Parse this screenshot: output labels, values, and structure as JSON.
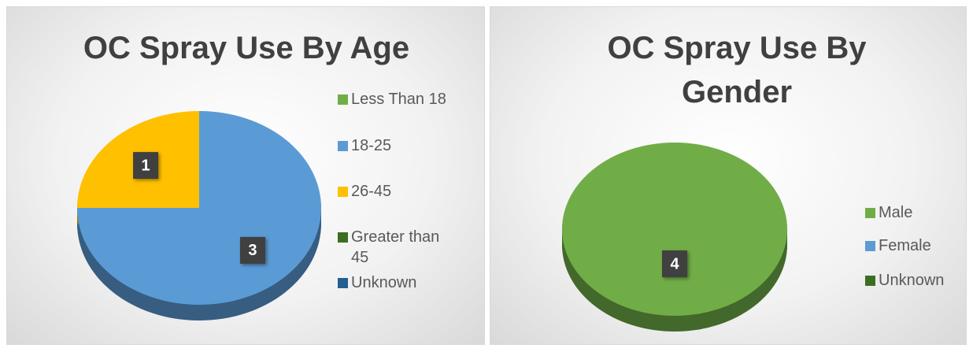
{
  "chart_data": [
    {
      "type": "pie",
      "title": "OC Spray Use By Age",
      "categories": [
        "Less Than 18",
        "18-25",
        "26-45",
        "Greater than 45",
        "Unknown"
      ],
      "values": [
        0,
        3,
        1,
        0,
        0
      ],
      "colors": [
        "#70ad47",
        "#5b9bd5",
        "#ffc000",
        "#3b6e22",
        "#255e91"
      ]
    },
    {
      "type": "pie",
      "title": "OC Spray Use By Gender",
      "categories": [
        "Male",
        "Female",
        "Unknown"
      ],
      "values": [
        4,
        0,
        0
      ],
      "colors": [
        "#70ad47",
        "#5b9bd5",
        "#3b6e22"
      ]
    }
  ]
}
